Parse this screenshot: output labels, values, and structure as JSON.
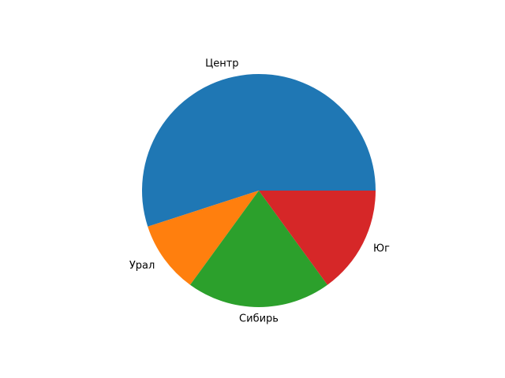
{
  "chart_data": {
    "type": "pie",
    "categories": [
      "Центр",
      "Урал",
      "Сибирь",
      "Юг"
    ],
    "values": [
      55,
      10,
      20,
      15
    ],
    "colors": [
      "#1f77b4",
      "#ff7f0e",
      "#2ca02c",
      "#d62728"
    ],
    "start_angle": 0,
    "direction": "counterclockwise",
    "legend": "none"
  }
}
